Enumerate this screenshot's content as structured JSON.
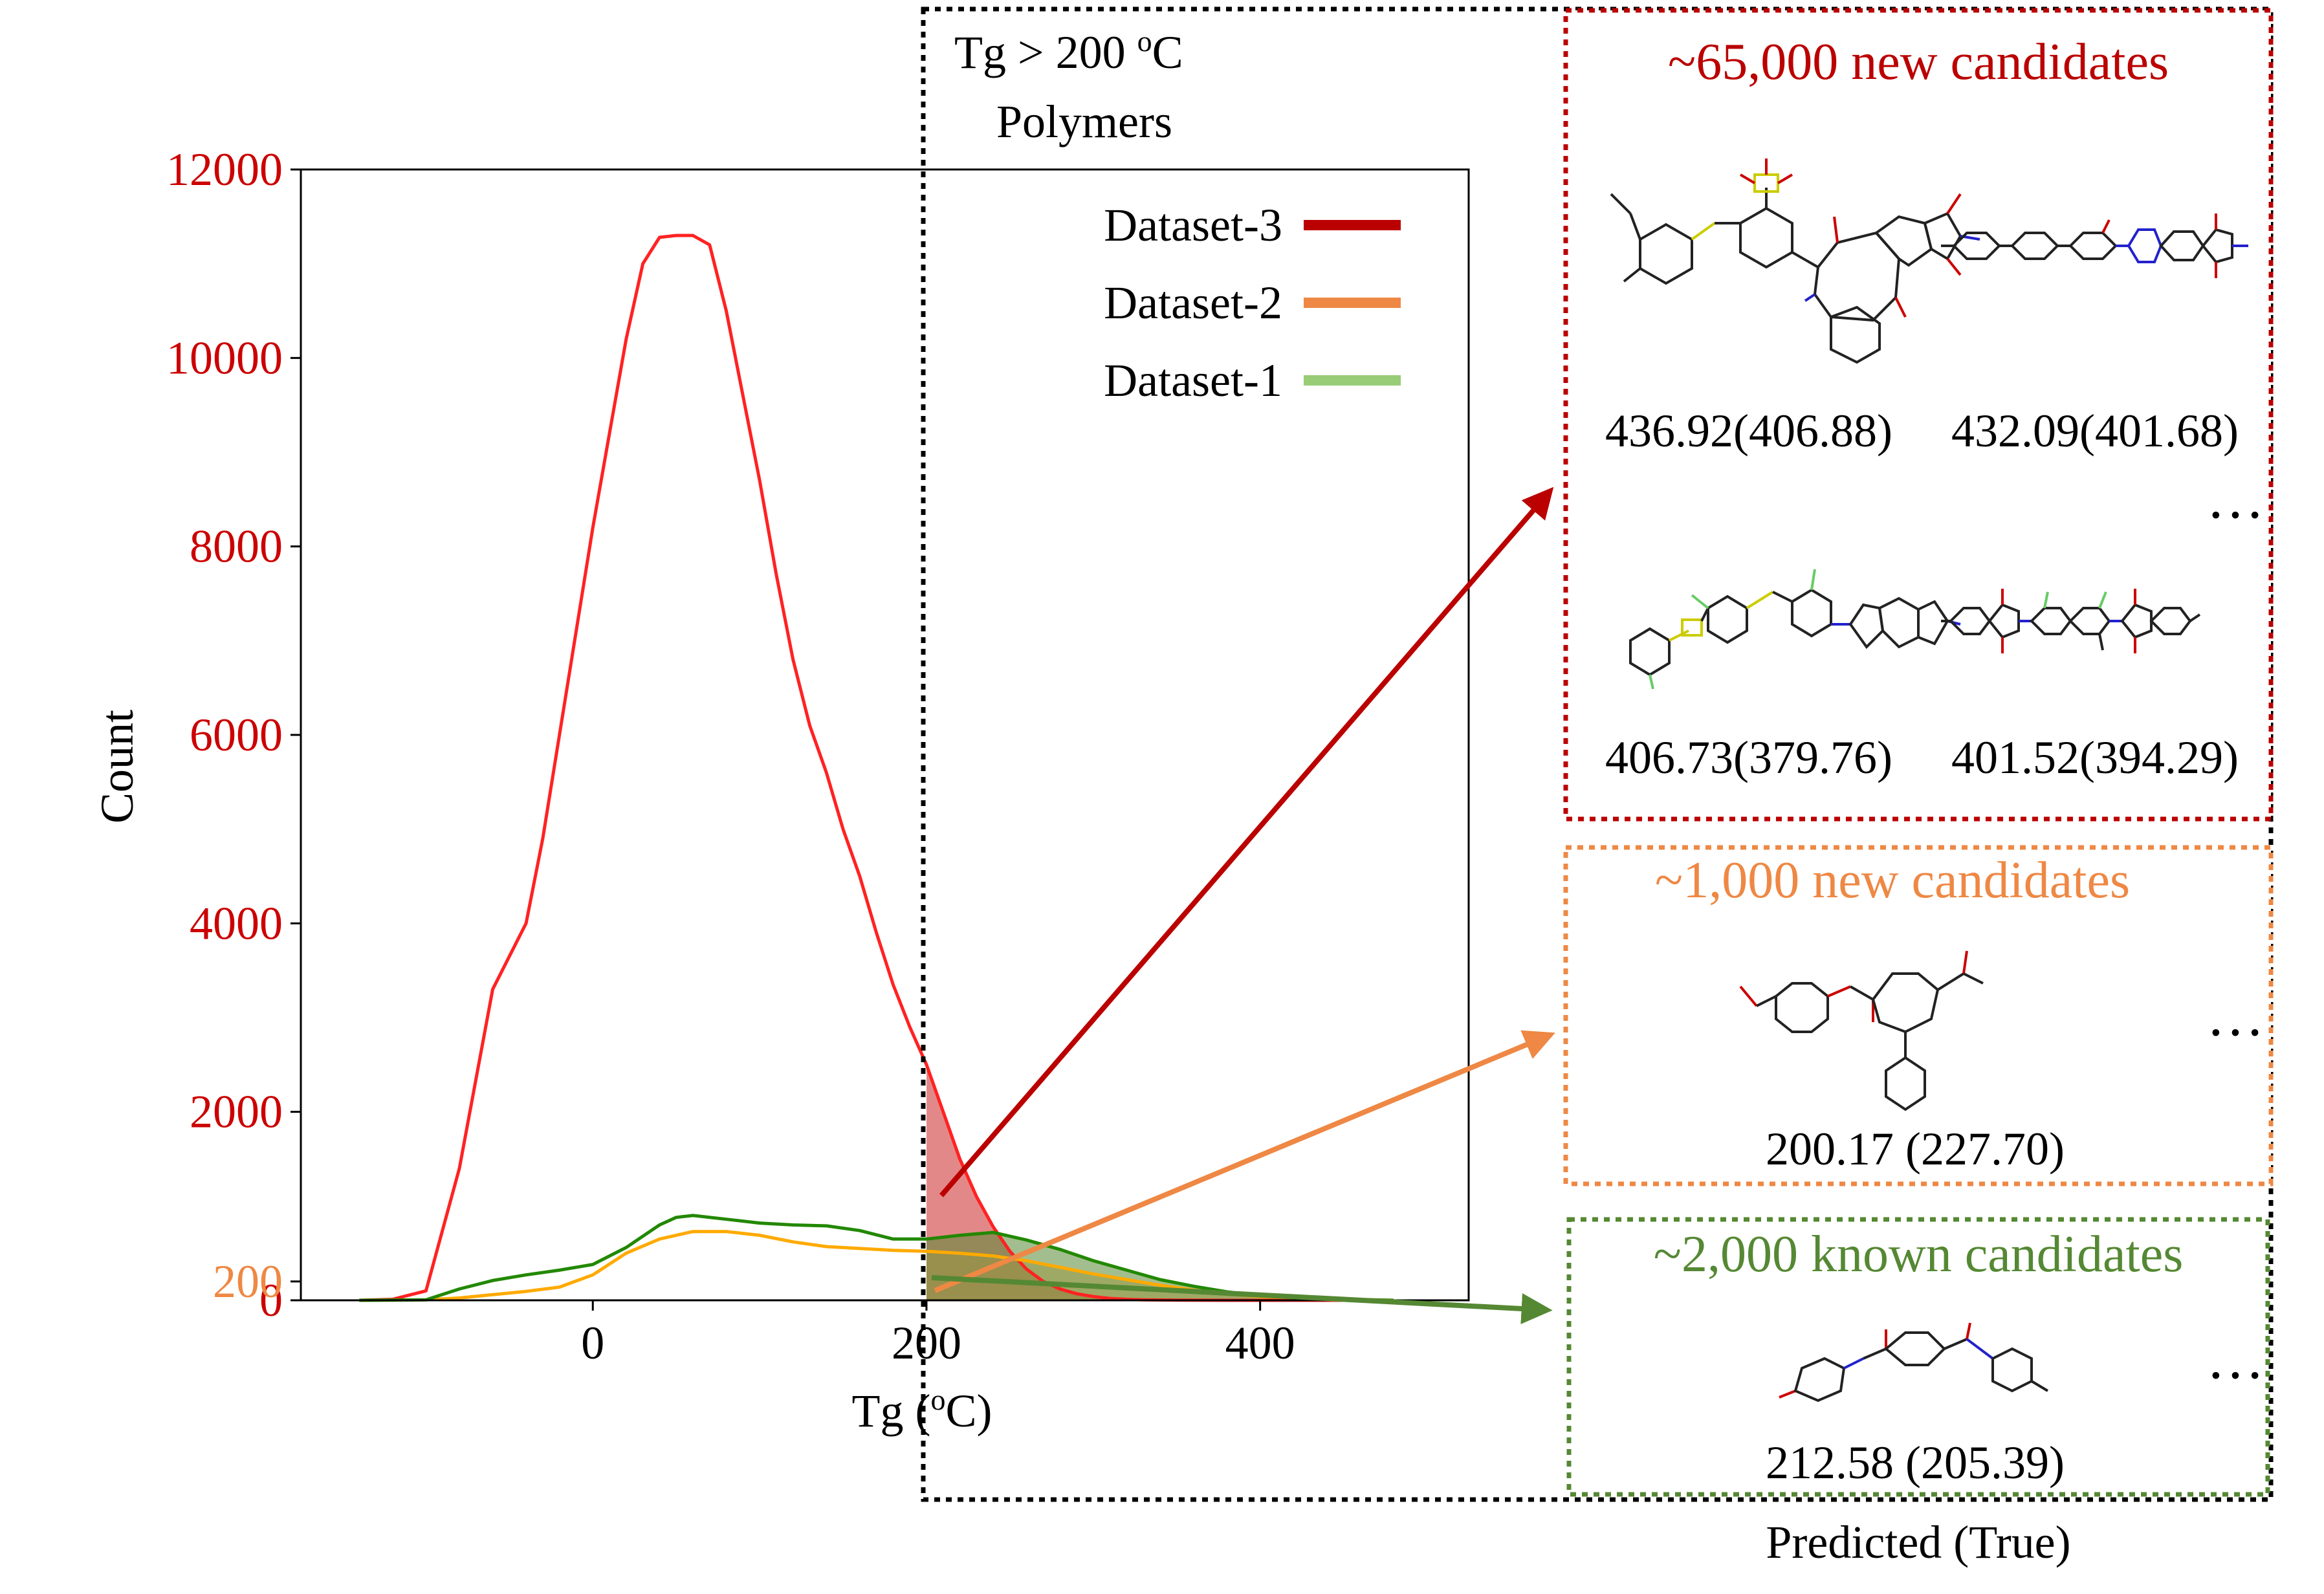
{
  "figure": {
    "region_title_line1": "Tg > 200 ",
    "region_title_sup": "o",
    "region_title_unit": "C",
    "region_title_line2": "Polymers",
    "footer_caption": "Predicted (True)"
  },
  "chart_data": {
    "type": "line",
    "xlabel_prefix": "Tg (",
    "xlabel_sup": "o",
    "xlabel_suffix": "C)",
    "ylabel": "Count",
    "xlim": [
      -175,
      525
    ],
    "ylim": [
      0,
      12000
    ],
    "x_ticks": [
      0,
      200,
      400
    ],
    "y_ticks": [
      {
        "value": 0,
        "label": "0",
        "color": "#cc0000"
      },
      {
        "value": 200,
        "label": "200",
        "color": "#ee8844"
      },
      {
        "value": 2000,
        "label": "2000",
        "color": "#cc0000"
      },
      {
        "value": 4000,
        "label": "4000",
        "color": "#cc0000"
      },
      {
        "value": 6000,
        "label": "6000",
        "color": "#cc0000"
      },
      {
        "value": 8000,
        "label": "8000",
        "color": "#cc0000"
      },
      {
        "value": 10000,
        "label": "10000",
        "color": "#cc0000"
      },
      {
        "value": 12000,
        "label": "12000",
        "color": "#cc0000"
      }
    ],
    "threshold_x": 200,
    "legend_position": "top-right",
    "legend": [
      {
        "label": "Dataset-3",
        "color": "#bb0000"
      },
      {
        "label": "Dataset-2",
        "color": "#ee8844"
      },
      {
        "label": "Dataset-1",
        "color": "#99cc77"
      }
    ],
    "series": [
      {
        "name": "Dataset-3",
        "color": "#ff2222",
        "fill": "#d96060",
        "x": [
          -140,
          -120,
          -100,
          -80,
          -60,
          -50,
          -40,
          -30,
          -20,
          -10,
          0,
          10,
          20,
          30,
          40,
          50,
          60,
          70,
          80,
          90,
          100,
          110,
          120,
          130,
          140,
          150,
          160,
          170,
          180,
          190,
          200,
          210,
          220,
          230,
          240,
          250,
          260,
          270,
          280,
          290,
          300,
          310,
          320,
          330,
          350,
          380,
          420,
          480
        ],
        "y": [
          0,
          10,
          100,
          1400,
          3300,
          3650,
          4000,
          4900,
          6000,
          7100,
          8200,
          9200,
          10200,
          11000,
          11280,
          11300,
          11300,
          11200,
          10500,
          9600,
          8700,
          7700,
          6800,
          6100,
          5600,
          5000,
          4500,
          3900,
          3350,
          2900,
          2500,
          2000,
          1500,
          1100,
          780,
          520,
          330,
          200,
          120,
          70,
          40,
          20,
          10,
          5,
          2,
          0,
          0,
          0
        ]
      },
      {
        "name": "Dataset-2",
        "color": "#ffaa00",
        "fill": "#eeaa55",
        "x": [
          -140,
          -100,
          -80,
          -60,
          -40,
          -20,
          0,
          20,
          40,
          60,
          80,
          100,
          120,
          140,
          160,
          180,
          200,
          220,
          240,
          260,
          280,
          300,
          320,
          340,
          360,
          380,
          400,
          440,
          480
        ],
        "y": [
          0,
          5,
          25,
          60,
          95,
          140,
          270,
          500,
          650,
          730,
          730,
          690,
          620,
          570,
          550,
          530,
          520,
          500,
          470,
          420,
          350,
          280,
          220,
          160,
          110,
          70,
          40,
          15,
          0
        ]
      },
      {
        "name": "Dataset-1",
        "color": "#228800",
        "fill": "#558833",
        "x": [
          -140,
          -100,
          -80,
          -60,
          -40,
          -20,
          0,
          20,
          40,
          50,
          60,
          80,
          100,
          120,
          140,
          160,
          180,
          200,
          220,
          240,
          260,
          280,
          300,
          320,
          340,
          360,
          380,
          400,
          440,
          480
        ],
        "y": [
          0,
          5,
          120,
          210,
          270,
          320,
          380,
          560,
          800,
          880,
          900,
          860,
          820,
          800,
          790,
          740,
          650,
          650,
          690,
          720,
          640,
          540,
          420,
          320,
          220,
          150,
          90,
          50,
          15,
          0
        ]
      }
    ]
  },
  "panels": [
    {
      "title": "~65,000 new candidates",
      "color": "#bb0000",
      "labels": [
        "436.92(406.88)",
        "432.09(401.68)",
        "406.73(379.76)",
        "401.52(394.29)"
      ],
      "ellipsis": "…"
    },
    {
      "title": "~1,000 new candidates",
      "color": "#ee8844",
      "labels": [
        "200.17 (227.70)"
      ],
      "ellipsis": "…"
    },
    {
      "title": "~2,000 known candidates",
      "color": "#558833",
      "labels": [
        "212.58 (205.39)"
      ],
      "ellipsis": "…"
    }
  ]
}
